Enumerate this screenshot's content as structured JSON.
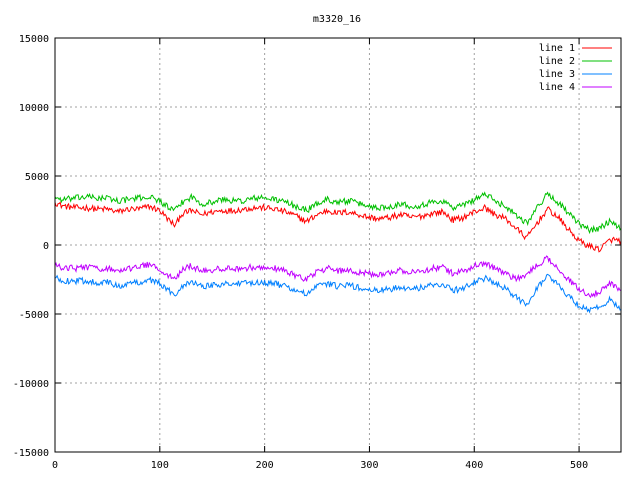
{
  "chart_data": {
    "type": "line",
    "title": "m3320_16",
    "xlabel": "",
    "ylabel": "",
    "xlim": [
      0,
      540
    ],
    "ylim": [
      -15000,
      15000
    ],
    "x_ticks": [
      0,
      100,
      200,
      300,
      400,
      500
    ],
    "y_ticks": [
      -15000,
      -10000,
      -5000,
      0,
      5000,
      10000,
      15000
    ],
    "grid": true,
    "legend_position": "top-right",
    "x": [
      0,
      5,
      10,
      20,
      30,
      40,
      50,
      60,
      70,
      80,
      90,
      100,
      110,
      115,
      120,
      130,
      140,
      150,
      160,
      170,
      180,
      190,
      200,
      210,
      220,
      230,
      240,
      250,
      260,
      270,
      280,
      290,
      300,
      310,
      320,
      330,
      340,
      350,
      360,
      370,
      380,
      390,
      400,
      410,
      420,
      430,
      440,
      450,
      460,
      470,
      480,
      490,
      500,
      510,
      520,
      530,
      540
    ],
    "series": [
      {
        "name": "line 1",
        "color": "#ff0000",
        "values": [
          3100,
          2900,
          2800,
          2700,
          2700,
          2600,
          2600,
          2400,
          2600,
          2600,
          2800,
          2500,
          1700,
          1400,
          2200,
          2500,
          2200,
          2400,
          2500,
          2500,
          2600,
          2700,
          2700,
          2600,
          2400,
          2100,
          1700,
          2200,
          2500,
          2300,
          2400,
          2200,
          2000,
          1900,
          2000,
          2200,
          2000,
          2100,
          2300,
          2400,
          1800,
          2000,
          2400,
          2700,
          2200,
          1900,
          1200,
          500,
          1600,
          2600,
          2000,
          1100,
          300,
          -100,
          -300,
          400,
          300
        ]
      },
      {
        "name": "line 2",
        "color": "#00c000",
        "values": [
          3500,
          3300,
          3300,
          3400,
          3500,
          3400,
          3400,
          3200,
          3300,
          3400,
          3500,
          3200,
          2600,
          2500,
          3000,
          3500,
          3000,
          3100,
          3300,
          3200,
          3200,
          3400,
          3400,
          3300,
          3100,
          2800,
          2500,
          3000,
          3300,
          3100,
          3200,
          3000,
          2800,
          2700,
          2800,
          3000,
          2800,
          2900,
          3100,
          3200,
          2700,
          2900,
          3300,
          3700,
          3200,
          2800,
          2200,
          1600,
          2700,
          3700,
          3100,
          2300,
          1500,
          1100,
          1200,
          1800,
          1200
        ]
      },
      {
        "name": "line 3",
        "color": "#0080ff",
        "values": [
          -2400,
          -2500,
          -2600,
          -2600,
          -2600,
          -2700,
          -2700,
          -3000,
          -2800,
          -2700,
          -2500,
          -2800,
          -3400,
          -3600,
          -3000,
          -2600,
          -3000,
          -2900,
          -2800,
          -2800,
          -2800,
          -2700,
          -2700,
          -2800,
          -3000,
          -3300,
          -3600,
          -3000,
          -2800,
          -3000,
          -2900,
          -3100,
          -3300,
          -3300,
          -3200,
          -3000,
          -3200,
          -3100,
          -2900,
          -2800,
          -3300,
          -3100,
          -2700,
          -2400,
          -2800,
          -3200,
          -3800,
          -4300,
          -3100,
          -2200,
          -2900,
          -3700,
          -4400,
          -4700,
          -4500,
          -3900,
          -4700
        ]
      },
      {
        "name": "line 4",
        "color": "#c000ff",
        "values": [
          -1500,
          -1600,
          -1600,
          -1700,
          -1600,
          -1700,
          -1700,
          -1900,
          -1700,
          -1600,
          -1400,
          -1700,
          -2300,
          -2500,
          -1900,
          -1500,
          -1900,
          -1800,
          -1700,
          -1700,
          -1700,
          -1600,
          -1600,
          -1700,
          -1900,
          -2200,
          -2500,
          -1900,
          -1700,
          -1900,
          -1800,
          -2000,
          -2100,
          -2100,
          -2000,
          -1800,
          -2000,
          -1900,
          -1700,
          -1600,
          -2100,
          -1900,
          -1500,
          -1300,
          -1700,
          -2100,
          -2500,
          -2100,
          -1500,
          -900,
          -1700,
          -2500,
          -3200,
          -3600,
          -3400,
          -2800,
          -3300
        ]
      }
    ]
  }
}
